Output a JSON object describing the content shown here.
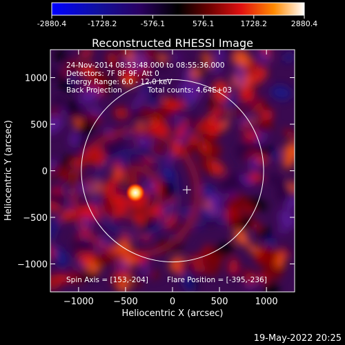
{
  "colorbar": {
    "ticks": [
      "-2880.4",
      "-1728.2",
      "-576.1",
      "576.1",
      "1728.2",
      "2880.4"
    ],
    "range": [
      -2880.4,
      2880.4
    ]
  },
  "title": "Reconstructed RHESSI Image",
  "info": {
    "line1": "24-Nov-2014 08:53:48.000 to 08:55:36.000",
    "line2": "Detectors: 7F 8F 9F, Att 0",
    "line3": "Energy Range: 6.0 - 12.0 keV",
    "line4_left": "Back Projection",
    "line4_right": "Total counts: 4.64E+03"
  },
  "footer": {
    "spin_axis": "Spin Axis = [153,-204]",
    "flare_position": "Flare Position = [-395,-236]"
  },
  "axes": {
    "xlabel": "Heliocentric X (arcsec)",
    "ylabel": "Heliocentric Y (arcsec)",
    "xticks": [
      -1000,
      -500,
      0,
      500,
      1000
    ],
    "yticks": [
      1000,
      500,
      0,
      -500,
      -1000
    ],
    "xlim": [
      -1300,
      1300
    ],
    "ylim": [
      -1300,
      1300
    ]
  },
  "solar_limb_radius": 970,
  "spin_axis_marker": [
    153,
    -204
  ],
  "flare_position_xy": [
    -395,
    -236
  ],
  "timestamp": "19-May-2022 20:25"
}
